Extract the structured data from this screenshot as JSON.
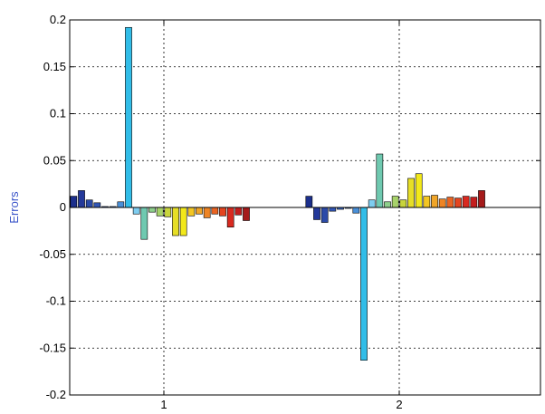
{
  "chart_data": {
    "type": "bar",
    "title": "",
    "xlabel": "",
    "ylabel": "Errors",
    "ylim": [
      -0.2,
      0.2
    ],
    "xlim": [
      0.6,
      2.6
    ],
    "y_ticks": [
      -0.2,
      -0.15,
      -0.1,
      -0.05,
      0,
      0.05,
      0.1,
      0.15,
      0.2
    ],
    "y_tick_labels": [
      "-0.2",
      "-0.15",
      "-0.1",
      "-0.05",
      "0",
      "0.05",
      "0.1",
      "0.15",
      "0.2"
    ],
    "x_ticks": [
      1,
      2
    ],
    "x_tick_labels": [
      "1",
      "2"
    ],
    "grid": true,
    "grid_style": "dotted",
    "categories": [
      "1",
      "2"
    ],
    "bar_colors": [
      "#1c2f8c",
      "#24399a",
      "#2b4aa8",
      "#3256b5",
      "#3a66c2",
      "#4176ce",
      "#4a90d8",
      "#31bde8",
      "#7ecdf0",
      "#6fc9b0",
      "#8ecf8c",
      "#a7d26a",
      "#c8d43c",
      "#e6de26",
      "#f2e81a",
      "#f3c623",
      "#f0a528",
      "#ee8424",
      "#ea6422",
      "#e3441f",
      "#d92a20",
      "#c41e1e",
      "#a51a1a",
      "#7e1414"
    ],
    "series": [
      {
        "values": [
          0.012,
          0.012
        ]
      },
      {
        "values": [
          0.018,
          -0.013
        ]
      },
      {
        "values": [
          0.008,
          -0.016
        ]
      },
      {
        "values": [
          0.005,
          -0.004
        ]
      },
      {
        "values": [
          0.001,
          -0.002
        ]
      },
      {
        "values": [
          0.001,
          -0.001
        ]
      },
      {
        "values": [
          0.006,
          -0.006
        ]
      },
      {
        "values": [
          0.192,
          -0.163
        ]
      },
      {
        "values": [
          -0.007,
          0.008
        ]
      },
      {
        "values": [
          -0.034,
          0.057
        ]
      },
      {
        "values": [
          -0.005,
          0.006
        ]
      },
      {
        "values": [
          -0.009,
          0.012
        ]
      },
      {
        "values": [
          -0.01,
          0.008
        ]
      },
      {
        "values": [
          -0.03,
          0.031
        ]
      },
      {
        "values": [
          -0.03,
          0.036
        ]
      },
      {
        "values": [
          -0.009,
          0.012
        ]
      },
      {
        "values": [
          -0.007,
          0.013
        ]
      },
      {
        "values": [
          -0.011,
          0.009
        ]
      },
      {
        "values": [
          -0.007,
          0.011
        ]
      },
      {
        "values": [
          -0.009,
          0.01
        ]
      },
      {
        "values": [
          -0.021,
          0.012
        ]
      },
      {
        "values": [
          -0.008,
          0.011
        ]
      },
      {
        "values": [
          -0.014,
          0.018
        ]
      },
      {
        "values": [
          0,
          0
        ]
      }
    ]
  }
}
